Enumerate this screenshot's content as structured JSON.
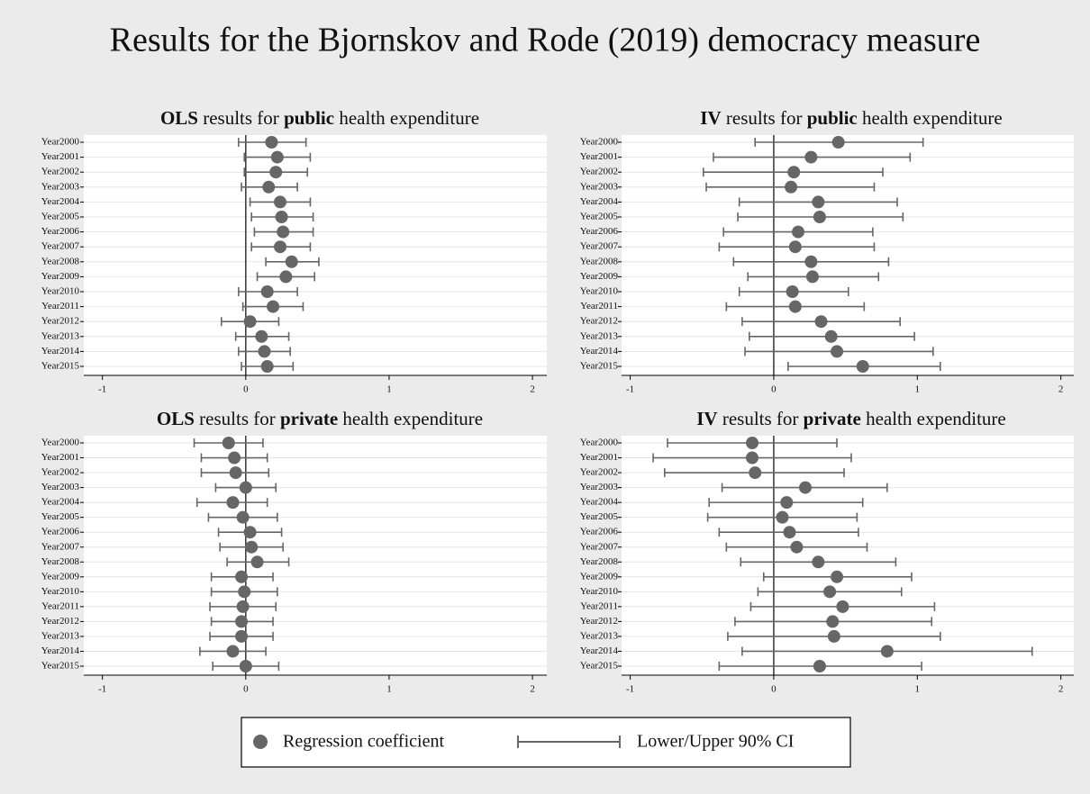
{
  "title": "Results for the Bjornskov and Rode (2019) democracy measure",
  "legend": {
    "coefficient": "Regression coefficient",
    "interval": "Lower/Upper 90% CI"
  },
  "chart_data": [
    {
      "type": "errorbar",
      "title": [
        "OLS",
        "results for",
        "public",
        "health expenditure"
      ],
      "title_bold": [
        true,
        false,
        true,
        false
      ],
      "categories": [
        "Year2000",
        "Year2001",
        "Year2002",
        "Year2003",
        "Year2004",
        "Year2005",
        "Year2006",
        "Year2007",
        "Year2008",
        "Year2009",
        "Year2010",
        "Year2011",
        "Year2012",
        "Year2013",
        "Year2014",
        "Year2015"
      ],
      "values": [
        0.18,
        0.22,
        0.21,
        0.16,
        0.24,
        0.25,
        0.26,
        0.24,
        0.32,
        0.28,
        0.15,
        0.19,
        0.03,
        0.11,
        0.13,
        0.15
      ],
      "lower": [
        -0.05,
        -0.01,
        -0.01,
        -0.03,
        0.03,
        0.04,
        0.06,
        0.04,
        0.14,
        0.08,
        -0.05,
        -0.02,
        -0.17,
        -0.07,
        -0.05,
        -0.03
      ],
      "upper": [
        0.42,
        0.45,
        0.43,
        0.36,
        0.45,
        0.47,
        0.47,
        0.45,
        0.51,
        0.48,
        0.36,
        0.4,
        0.23,
        0.3,
        0.31,
        0.33
      ],
      "xlim": [
        -1.13,
        2.1
      ],
      "xticks": [
        -1,
        0,
        1,
        2
      ],
      "color": "#666666"
    },
    {
      "type": "errorbar",
      "title": [
        "IV",
        "results for",
        "public",
        "health expenditure"
      ],
      "title_bold": [
        true,
        false,
        true,
        false
      ],
      "categories": [
        "Year2000",
        "Year2001",
        "Year2002",
        "Year2003",
        "Year2004",
        "Year2005",
        "Year2006",
        "Year2007",
        "Year2008",
        "Year2009",
        "Year2010",
        "Year2011",
        "Year2012",
        "Year2013",
        "Year2014",
        "Year2015"
      ],
      "values": [
        0.45,
        0.26,
        0.14,
        0.12,
        0.31,
        0.32,
        0.17,
        0.15,
        0.26,
        0.27,
        0.13,
        0.15,
        0.33,
        0.4,
        0.44,
        0.62
      ],
      "lower": [
        -0.13,
        -0.42,
        -0.49,
        -0.47,
        -0.24,
        -0.25,
        -0.35,
        -0.38,
        -0.28,
        -0.18,
        -0.24,
        -0.33,
        -0.22,
        -0.17,
        -0.2,
        0.1
      ],
      "upper": [
        1.04,
        0.95,
        0.76,
        0.7,
        0.86,
        0.9,
        0.69,
        0.7,
        0.8,
        0.73,
        0.52,
        0.63,
        0.88,
        0.98,
        1.11,
        1.16
      ],
      "xlim": [
        -1.06,
        2.09
      ],
      "xticks": [
        -1,
        0,
        1,
        2
      ],
      "color": "#666666"
    },
    {
      "type": "errorbar",
      "title": [
        "OLS",
        "results for",
        "private",
        "health expenditure"
      ],
      "title_bold": [
        true,
        false,
        true,
        false
      ],
      "categories": [
        "Year2000",
        "Year2001",
        "Year2002",
        "Year2003",
        "Year2004",
        "Year2005",
        "Year2006",
        "Year2007",
        "Year2008",
        "Year2009",
        "Year2010",
        "Year2011",
        "Year2012",
        "Year2013",
        "Year2014",
        "Year2015"
      ],
      "values": [
        -0.12,
        -0.08,
        -0.07,
        0.0,
        -0.09,
        -0.02,
        0.03,
        0.04,
        0.08,
        -0.03,
        -0.01,
        -0.02,
        -0.03,
        -0.03,
        -0.09,
        0.0
      ],
      "lower": [
        -0.36,
        -0.31,
        -0.31,
        -0.21,
        -0.34,
        -0.26,
        -0.19,
        -0.18,
        -0.13,
        -0.24,
        -0.24,
        -0.25,
        -0.24,
        -0.25,
        -0.32,
        -0.23
      ],
      "upper": [
        0.12,
        0.15,
        0.16,
        0.21,
        0.15,
        0.22,
        0.25,
        0.26,
        0.3,
        0.19,
        0.22,
        0.21,
        0.19,
        0.19,
        0.14,
        0.23
      ],
      "xlim": [
        -1.13,
        2.1
      ],
      "xticks": [
        -1,
        0,
        1,
        2
      ],
      "color": "#666666"
    },
    {
      "type": "errorbar",
      "title": [
        "IV",
        "results for",
        "private",
        "health expenditure"
      ],
      "title_bold": [
        true,
        false,
        true,
        false
      ],
      "categories": [
        "Year2000",
        "Year2001",
        "Year2002",
        "Year2003",
        "Year2004",
        "Year2005",
        "Year2006",
        "Year2007",
        "Year2008",
        "Year2009",
        "Year2010",
        "Year2011",
        "Year2012",
        "Year2013",
        "Year2014",
        "Year2015"
      ],
      "values": [
        -0.15,
        -0.15,
        -0.13,
        0.22,
        0.09,
        0.06,
        0.11,
        0.16,
        0.31,
        0.44,
        0.39,
        0.48,
        0.41,
        0.42,
        0.79,
        0.32
      ],
      "lower": [
        -0.74,
        -0.84,
        -0.76,
        -0.36,
        -0.45,
        -0.46,
        -0.38,
        -0.33,
        -0.23,
        -0.07,
        -0.11,
        -0.16,
        -0.27,
        -0.32,
        -0.22,
        -0.38
      ],
      "upper": [
        0.44,
        0.54,
        0.49,
        0.79,
        0.62,
        0.58,
        0.59,
        0.65,
        0.85,
        0.96,
        0.89,
        1.12,
        1.1,
        1.16,
        1.8,
        1.03
      ],
      "xlim": [
        -1.06,
        2.09
      ],
      "xticks": [
        -1,
        0,
        1,
        2
      ],
      "color": "#666666"
    }
  ]
}
